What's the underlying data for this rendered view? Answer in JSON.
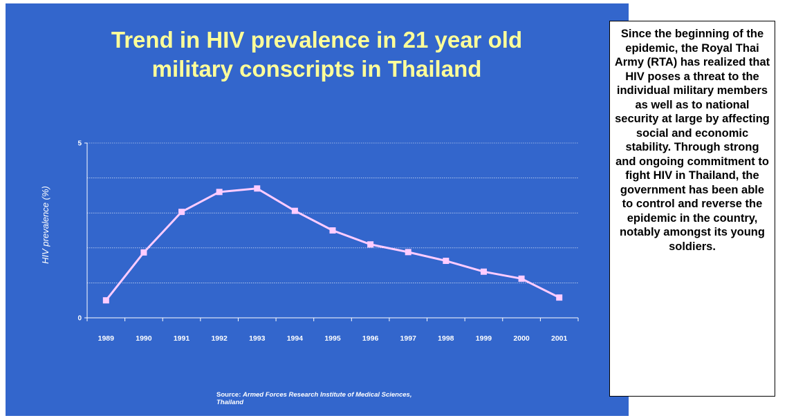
{
  "title_lines": [
    "Trend in HIV prevalence in 21 year old",
    "military conscripts in Thailand"
  ],
  "source": {
    "label": "Source:",
    "text_line1": "Armed Forces Research Institute of Medical Sciences,",
    "text_line2": "Thailand"
  },
  "sidebar_text": "Since the beginning of the epidemic, the Royal Thai Army (RTA) has realized that HIV poses a threat to the individual military members as well as to national security at large by affecting social and economic stability. Through strong and ongoing commitment to fight HIV in Thailand, the government has been able to control and reverse the epidemic in the country, notably amongst its young soldiers.",
  "colors": {
    "background": "#3366cc",
    "title": "#ffff99",
    "line": "#ffccff",
    "marker": "#ffccff",
    "grid": "#ffffff",
    "text": "#ffffff"
  },
  "chart_data": {
    "type": "line",
    "title": "Trend in HIV prevalence in 21 year old military conscripts in Thailand",
    "xlabel": "",
    "ylabel": "HIV prevalence (%)",
    "categories": [
      "1989",
      "1990",
      "1991",
      "1992",
      "1993",
      "1994",
      "1995",
      "1996",
      "1997",
      "1998",
      "1999",
      "2000",
      "2001"
    ],
    "series": [
      {
        "values": [
          0.5,
          1.87,
          3.03,
          3.6,
          3.7,
          3.06,
          2.5,
          2.1,
          1.88,
          1.63,
          1.32,
          1.12,
          0.58
        ]
      }
    ],
    "ylim": [
      0,
      5
    ],
    "yticks": [
      0,
      5
    ],
    "grid": true
  }
}
